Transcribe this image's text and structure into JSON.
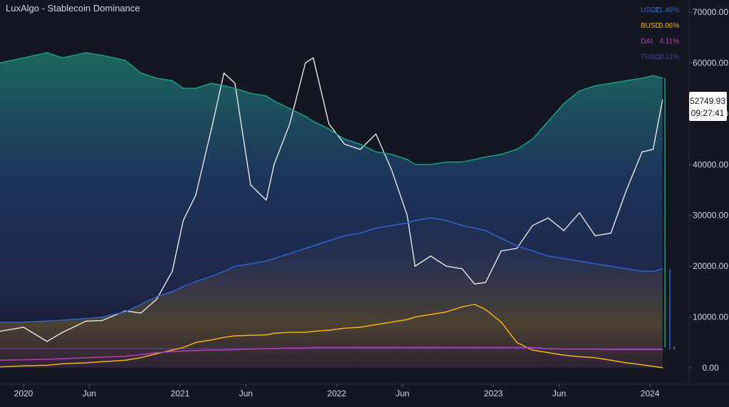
{
  "title": "LuxAlgo - Stablecoin Dominance",
  "price_label": {
    "price": "52749.93",
    "time": "09:27:41"
  },
  "colors": {
    "background": "#131722",
    "btc": "#e6e6e6",
    "usdc": "#2f63c8",
    "busd": "#f2b21b",
    "dai": "#b43fb4",
    "tusd": "#4f3a9a",
    "top_area": "#1d9c80"
  },
  "chart_data": {
    "type": "line",
    "title": "LuxAlgo - Stablecoin Dominance",
    "x_ticks": [
      "2020",
      "Jun",
      "2021",
      "Jun",
      "2022",
      "Jun",
      "2023",
      "Jun",
      "2024"
    ],
    "y_ticks": [
      "70000.00",
      "60000.00",
      "50000.00",
      "40000.00",
      "30000.00",
      "20000.00",
      "10000.00",
      "0.00"
    ],
    "ylim": [
      0,
      70000
    ],
    "legend": [
      {
        "name": "USDC",
        "value": "21.46%",
        "color": "#2f63c8"
      },
      {
        "name": "BUSD",
        "value": "0.06%",
        "color": "#f2b21b"
      },
      {
        "name": "DAI",
        "value": "4.11%",
        "color": "#b43fb4"
      },
      {
        "name": "TUSD",
        "value": "0.11%",
        "color": "#4f3a9a"
      }
    ],
    "legend_position": "top-right",
    "x": [
      2019.85,
      2020.0,
      2020.15,
      2020.25,
      2020.4,
      2020.5,
      2020.65,
      2020.75,
      2020.85,
      2020.95,
      2021.02,
      2021.1,
      2021.2,
      2021.28,
      2021.35,
      2021.45,
      2021.55,
      2021.6,
      2021.7,
      2021.8,
      2021.85,
      2021.95,
      2022.05,
      2022.15,
      2022.25,
      2022.35,
      2022.45,
      2022.5,
      2022.6,
      2022.7,
      2022.8,
      2022.88,
      2022.95,
      2023.05,
      2023.15,
      2023.25,
      2023.35,
      2023.45,
      2023.55,
      2023.65,
      2023.75,
      2023.85,
      2023.95,
      2024.02,
      2024.08
    ],
    "series": [
      {
        "name": "BTC",
        "values": [
          7200,
          8000,
          5200,
          7000,
          9200,
          9300,
          11200,
          10800,
          13500,
          19000,
          29000,
          34000,
          47000,
          58000,
          56000,
          36000,
          33000,
          40000,
          48000,
          60000,
          61000,
          48000,
          44000,
          43000,
          46000,
          39000,
          30000,
          20000,
          22000,
          20000,
          19500,
          16500,
          16800,
          23000,
          23500,
          28000,
          29500,
          27000,
          30500,
          26000,
          26500,
          35000,
          42500,
          43000,
          52700
        ]
      },
      {
        "name": "Stablecoin area top",
        "values": [
          60000,
          61000,
          62000,
          61000,
          62000,
          61500,
          60500,
          58000,
          57000,
          56500,
          55000,
          55000,
          56000,
          55500,
          55000,
          54000,
          53500,
          52500,
          51000,
          49500,
          48500,
          47000,
          45000,
          44000,
          42500,
          42000,
          41000,
          40000,
          40000,
          40500,
          40500,
          41000,
          41500,
          42000,
          43000,
          45000,
          48500,
          52000,
          54500,
          55500,
          56000,
          56500,
          57000,
          57500,
          57000
        ]
      },
      {
        "name": "USDC",
        "values": [
          9000,
          9000,
          9200,
          9400,
          9700,
          10000,
          11000,
          12500,
          14000,
          15000,
          16000,
          17000,
          18000,
          19000,
          20000,
          20500,
          21000,
          21500,
          22500,
          23500,
          24000,
          25000,
          26000,
          26500,
          27500,
          28000,
          28500,
          29000,
          29500,
          29000,
          28000,
          27500,
          27000,
          25500,
          24000,
          23000,
          22000,
          21500,
          21000,
          20500,
          20000,
          19500,
          19000,
          19000,
          19500
        ]
      },
      {
        "name": "BUSD",
        "values": [
          200,
          400,
          500,
          800,
          1000,
          1200,
          1500,
          2000,
          2800,
          3500,
          4000,
          5000,
          5500,
          6000,
          6300,
          6400,
          6500,
          6800,
          7000,
          7000,
          7200,
          7400,
          7800,
          8000,
          8500,
          9000,
          9500,
          10000,
          10500,
          11000,
          12000,
          12500,
          11500,
          9000,
          5000,
          3500,
          3000,
          2500,
          2200,
          2000,
          1500,
          1000,
          600,
          300,
          50
        ]
      },
      {
        "name": "DAI",
        "values": [
          1500,
          1600,
          1700,
          1800,
          2000,
          2100,
          2300,
          2600,
          3000,
          3200,
          3300,
          3400,
          3500,
          3500,
          3600,
          3700,
          3800,
          3800,
          3900,
          3900,
          4000,
          4000,
          4000,
          4000,
          4000,
          4000,
          4000,
          4000,
          4000,
          4000,
          4000,
          4000,
          4000,
          4000,
          4000,
          4000,
          3800,
          3700,
          3700,
          3700,
          3600,
          3600,
          3600,
          3600,
          3600
        ]
      }
    ]
  }
}
